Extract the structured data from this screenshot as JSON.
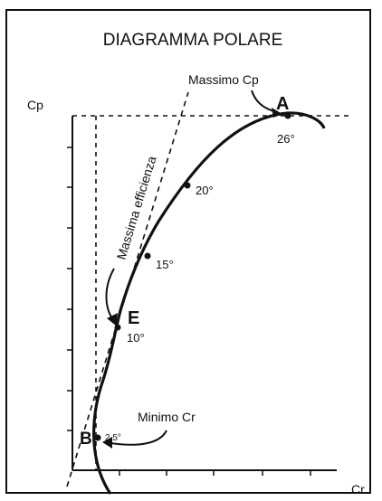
{
  "title": "DIAGRAMMA  POLARE",
  "axes": {
    "y_label": "Cp",
    "x_label": "Cr"
  },
  "annotations": {
    "massimo_cp": "Massimo  Cp",
    "massima_efficienza": "Massima  efficienza",
    "minimo_cr": "Minimo  Cr"
  },
  "points": [
    {
      "id": "A",
      "angle": "26°"
    },
    {
      "id": "",
      "angle": "20°"
    },
    {
      "id": "",
      "angle": "15°"
    },
    {
      "id": "E",
      "angle": "10°"
    },
    {
      "id": "B",
      "angle": "2.5°"
    }
  ],
  "colors": {
    "ink": "#111111",
    "background": "#ffffff"
  }
}
